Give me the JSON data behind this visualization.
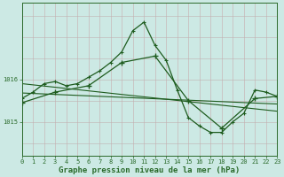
{
  "title": "Graphe pression niveau de la mer (hPa)",
  "bg_color": "#cce9e4",
  "line_color": "#1e5c1e",
  "grid_color_v": "#b8d8d2",
  "grid_color_h": "#c0b0b0",
  "axis_color": "#2a6a2a",
  "xlim": [
    0,
    23
  ],
  "ylim": [
    1014.2,
    1017.8
  ],
  "yticks": [
    1015,
    1016
  ],
  "xticks": [
    0,
    1,
    2,
    3,
    4,
    5,
    6,
    7,
    8,
    9,
    10,
    11,
    12,
    13,
    14,
    15,
    16,
    17,
    18,
    19,
    20,
    21,
    22,
    23
  ],
  "series1_x": [
    0,
    1,
    2,
    3,
    4,
    5,
    6,
    7,
    8,
    9,
    10,
    11,
    12,
    13,
    14,
    15,
    16,
    17,
    18,
    19,
    20,
    21,
    22,
    23
  ],
  "series1_y": [
    1015.55,
    1015.7,
    1015.9,
    1015.95,
    1015.85,
    1015.9,
    1016.05,
    1016.2,
    1016.4,
    1016.65,
    1017.15,
    1017.35,
    1016.8,
    1016.45,
    1015.75,
    1015.1,
    1014.9,
    1014.75,
    1014.75,
    1015.0,
    1015.2,
    1015.75,
    1015.7,
    1015.6
  ],
  "series2_x": [
    0,
    3,
    6,
    9,
    12,
    15,
    18,
    21,
    23
  ],
  "series2_y": [
    1015.45,
    1015.7,
    1015.85,
    1016.4,
    1016.55,
    1015.5,
    1014.85,
    1015.55,
    1015.6
  ],
  "trend1_x": [
    0,
    23
  ],
  "trend1_y": [
    1015.9,
    1015.25
  ],
  "trend2_x": [
    0,
    23
  ],
  "trend2_y": [
    1015.68,
    1015.42
  ],
  "title_fontsize": 6.5,
  "tick_fontsize": 5.0,
  "ylabel_fontsize": 5.5
}
